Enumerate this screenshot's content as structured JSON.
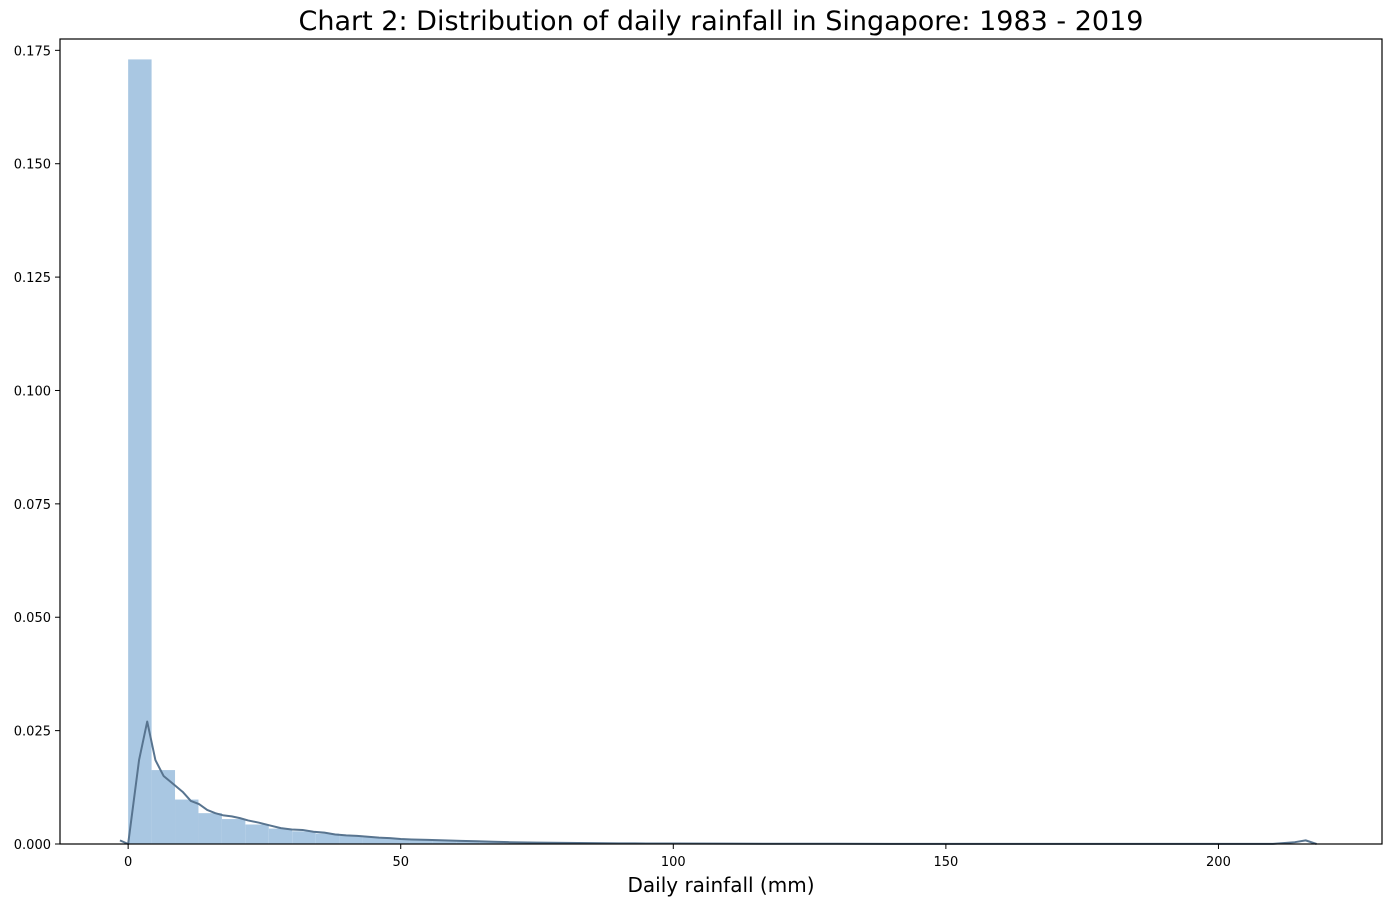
{
  "chart_data": {
    "type": "bar",
    "title": "Chart 2: Distribution of daily rainfall in Singapore: 1983 - 2019",
    "xlabel": "Daily rainfall (mm)",
    "ylabel": "",
    "xlim": [
      -12.5,
      230
    ],
    "ylim": [
      0,
      0.1775
    ],
    "x_ticks": [
      0,
      50,
      100,
      150,
      200
    ],
    "x_tick_labels": [
      "0",
      "50",
      "100",
      "150",
      "200"
    ],
    "y_ticks": [
      0,
      0.025,
      0.05,
      0.075,
      0.1,
      0.125,
      0.15,
      0.175
    ],
    "y_tick_labels": [
      "0.000",
      "0.025",
      "0.050",
      "0.075",
      "0.100",
      "0.125",
      "0.150",
      "0.175"
    ],
    "grid": false,
    "colors": {
      "bars": "#a9c7e2",
      "kde": "#58748f"
    },
    "histogram": {
      "bin_edges": [
        0,
        4.3,
        8.6,
        12.9,
        17.2,
        21.5,
        25.8,
        30.1,
        34.4,
        38.7,
        43.0,
        47.3,
        51.6,
        55.9,
        60.2,
        64.5,
        68.8,
        73.1,
        77.4,
        81.7,
        86.0,
        90.3,
        94.6,
        98.9,
        103.2,
        107.5,
        111.8,
        116.1,
        120.4,
        124.7,
        129.0,
        133.3,
        137.6,
        141.9,
        146.2,
        150.5,
        154.8,
        159.1,
        163.4,
        167.7,
        172.0,
        176.3,
        180.6,
        184.9,
        189.2,
        193.5,
        197.8,
        202.1,
        206.4,
        210.7,
        215.0,
        219.3
      ],
      "density": [
        0.173,
        0.0163,
        0.0098,
        0.0068,
        0.0055,
        0.0043,
        0.0034,
        0.0028,
        0.0023,
        0.0018,
        0.0015,
        0.0012,
        0.0009,
        0.0008,
        0.0006,
        0.0005,
        0.0004,
        0.00035,
        0.0003,
        0.00025,
        0.0002,
        0.00018,
        0.00015,
        0.00013,
        0.00011,
        0.0001,
        9e-05,
        8e-05,
        7e-05,
        6e-05,
        5e-05,
        5e-05,
        4e-05,
        4e-05,
        3e-05,
        3e-05,
        3e-05,
        2e-05,
        2e-05,
        2e-05,
        2e-05,
        2e-05,
        2e-05,
        2e-05,
        2e-05,
        2e-05,
        2e-05,
        2e-05,
        2e-05,
        2e-05,
        2e-05
      ]
    },
    "kde": {
      "x": [
        -1.5,
        0,
        2,
        3.5,
        5,
        6.5,
        8,
        10,
        11.5,
        13,
        14.5,
        16,
        17.5,
        19,
        20.5,
        22,
        24,
        26,
        28,
        30,
        32,
        34,
        36,
        38,
        40,
        42,
        44,
        46,
        48,
        50,
        52,
        55,
        58,
        61,
        64,
        67,
        70,
        75,
        80,
        85,
        90,
        95,
        100,
        110,
        120,
        130,
        140,
        150,
        160,
        170,
        180,
        190,
        200,
        210,
        214,
        216,
        218
      ],
      "y": [
        0.0008,
        0.0,
        0.0185,
        0.027,
        0.0185,
        0.015,
        0.0135,
        0.0115,
        0.0095,
        0.0088,
        0.0075,
        0.0068,
        0.0063,
        0.0061,
        0.0057,
        0.0052,
        0.0047,
        0.0041,
        0.0035,
        0.0032,
        0.0031,
        0.0027,
        0.0025,
        0.0021,
        0.0019,
        0.0018,
        0.0016,
        0.0014,
        0.0013,
        0.0011,
        0.001,
        0.0009,
        0.0008,
        0.0007,
        0.0006,
        0.0005,
        0.0004,
        0.0003,
        0.00025,
        0.0002,
        0.00015,
        0.00012,
        0.0001,
        8e-05,
        6e-05,
        5e-05,
        4e-05,
        4e-05,
        3e-05,
        3e-05,
        3e-05,
        3e-05,
        3e-05,
        3e-05,
        0.0004,
        0.0008,
        0.0
      ]
    }
  }
}
